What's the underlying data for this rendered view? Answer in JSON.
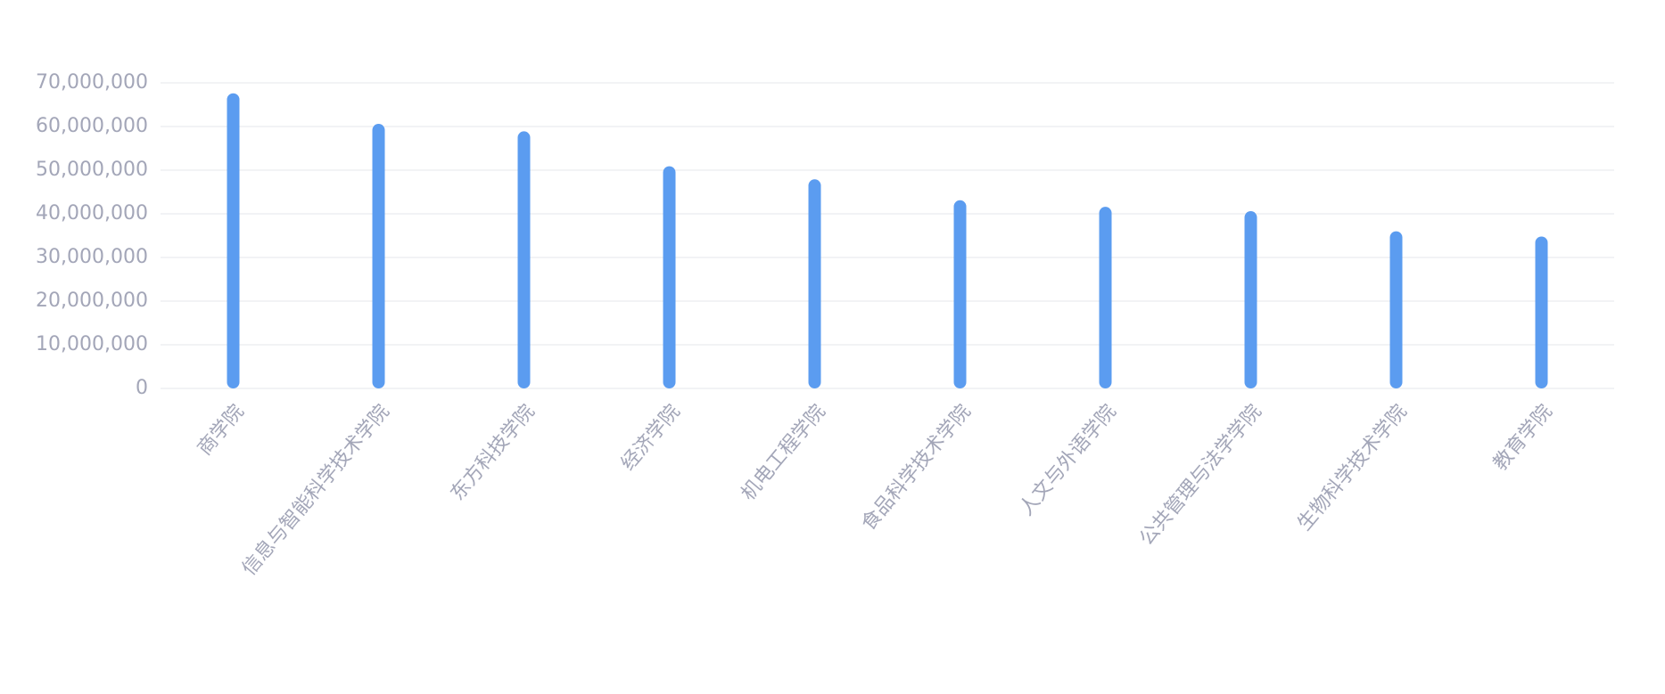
{
  "chart_data": {
    "type": "bar",
    "categories": [
      "商学院",
      "信息与智能科学技术学院",
      "东方科技学院",
      "经济学院",
      "机电工程学院",
      "食品科学技术学院",
      "人文与外语学院",
      "公共管理与法学学院",
      "生物科学技术学院",
      "教育学院"
    ],
    "values": [
      67600000,
      60600000,
      58900000,
      50900000,
      47900000,
      43100000,
      41600000,
      40600000,
      36000000,
      34800000
    ],
    "color": "#5b9cf0",
    "ylim": [
      0,
      70000000
    ],
    "yticks": [
      0,
      {
        "value": 10000000,
        "label": "10,000,000"
      },
      {
        "value": 20000000,
        "label": "20,000,000"
      },
      {
        "value": 30000000,
        "label": "30,000,000"
      },
      {
        "value": 40000000,
        "label": "40,000,000"
      },
      {
        "value": 50000000,
        "label": "50,000,000"
      },
      {
        "value": 60000000,
        "label": "60,000,000"
      },
      {
        "value": 70000000,
        "label": "70,000,000"
      }
    ],
    "grid": true
  }
}
